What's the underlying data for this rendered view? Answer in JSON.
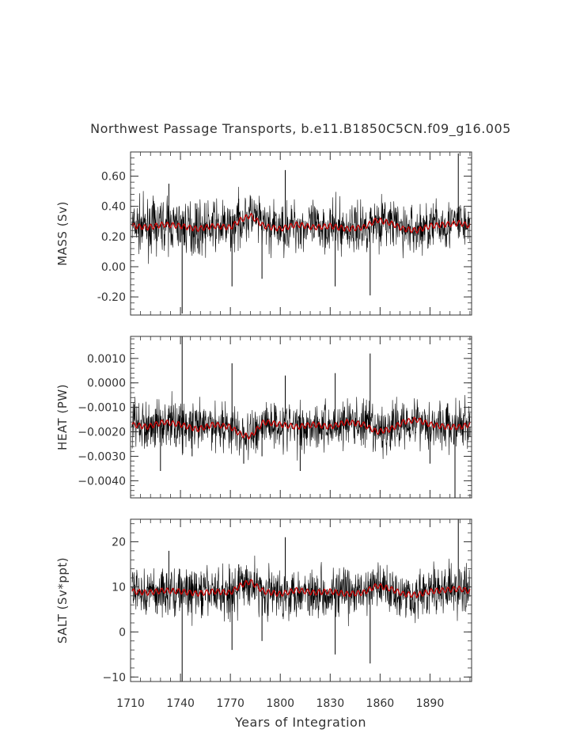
{
  "title": "Northwest Passage Transports, b.e11.B1850C5CN.f09_g16.005",
  "xlabel": "Years of Integration",
  "x_ticks": [
    1710,
    1740,
    1770,
    1800,
    1830,
    1860,
    1890
  ],
  "xlim": [
    1710,
    1915
  ],
  "colors": {
    "raw": "#000000",
    "smoothed": "#cc0000",
    "axis": "#333333"
  },
  "chart_data": [
    {
      "type": "line",
      "panel": "mass",
      "ylabel": "MASS (Sv)",
      "ylim": [
        -0.32,
        0.76
      ],
      "y_ticks": [
        -0.2,
        0.0,
        0.2,
        0.4,
        0.6
      ],
      "y_tick_labels": [
        "-0.20",
        "0.00",
        "0.20",
        "0.40",
        "0.60"
      ],
      "baseline": 0.27,
      "series": [
        {
          "style": "raw",
          "x": [
            1711,
            1720,
            1726,
            1733,
            1741,
            1749,
            1755,
            1766,
            1771,
            1775,
            1789,
            1797,
            1803,
            1812,
            1821,
            1833,
            1848,
            1854,
            1866,
            1878,
            1890,
            1902,
            1907,
            1914
          ],
          "y": [
            0.3,
            0.24,
            0.17,
            0.55,
            -0.31,
            0.42,
            0.21,
            0.28,
            -0.13,
            0.45,
            -0.08,
            0.3,
            0.64,
            0.15,
            0.33,
            -0.13,
            0.26,
            -0.19,
            0.38,
            0.16,
            0.35,
            0.22,
            0.75,
            0.27
          ]
        },
        {
          "style": "smoothed",
          "x": [
            1711,
            1720,
            1730,
            1740,
            1750,
            1760,
            1770,
            1776,
            1782,
            1790,
            1800,
            1810,
            1820,
            1830,
            1840,
            1850,
            1858,
            1866,
            1874,
            1882,
            1890,
            1900,
            1908,
            1914
          ],
          "y": [
            0.27,
            0.26,
            0.28,
            0.27,
            0.25,
            0.27,
            0.26,
            0.31,
            0.34,
            0.27,
            0.25,
            0.28,
            0.26,
            0.27,
            0.25,
            0.26,
            0.31,
            0.29,
            0.25,
            0.24,
            0.27,
            0.28,
            0.29,
            0.27
          ]
        }
      ]
    },
    {
      "type": "line",
      "panel": "heat",
      "ylabel": "HEAT (PW)",
      "ylim": [
        -0.0047,
        0.0019
      ],
      "y_ticks": [
        -0.004,
        -0.003,
        -0.002,
        -0.001,
        0.0,
        0.001
      ],
      "y_tick_labels": [
        "−0.0040",
        "−0.0030",
        "−0.0020",
        "−0.0010",
        "0.0000",
        "0.0010"
      ],
      "baseline": -0.0018,
      "series": [
        {
          "style": "raw",
          "x": [
            1711,
            1720,
            1728,
            1735,
            1741,
            1747,
            1755,
            1766,
            1771,
            1778,
            1789,
            1797,
            1803,
            1812,
            1825,
            1833,
            1845,
            1854,
            1866,
            1878,
            1890,
            1900,
            1905,
            1914
          ],
          "y": [
            -0.0017,
            -0.0026,
            -0.0036,
            -0.0012,
            0.0019,
            -0.003,
            -0.0019,
            -0.0014,
            0.0008,
            -0.0033,
            -0.003,
            -0.0012,
            0.0003,
            -0.0036,
            -0.0023,
            0.0004,
            -0.0012,
            0.0012,
            -0.0026,
            -0.0019,
            -0.0033,
            -0.001,
            -0.0047,
            -0.0022
          ]
        },
        {
          "style": "smoothed",
          "x": [
            1711,
            1720,
            1730,
            1740,
            1750,
            1760,
            1770,
            1776,
            1782,
            1790,
            1800,
            1810,
            1820,
            1830,
            1840,
            1850,
            1858,
            1866,
            1874,
            1882,
            1890,
            1900,
            1908,
            1914
          ],
          "y": [
            -0.0017,
            -0.0018,
            -0.0016,
            -0.0017,
            -0.0019,
            -0.0017,
            -0.0018,
            -0.0021,
            -0.0022,
            -0.0016,
            -0.0017,
            -0.0018,
            -0.0017,
            -0.0018,
            -0.0016,
            -0.0017,
            -0.002,
            -0.0019,
            -0.0016,
            -0.0015,
            -0.0017,
            -0.0018,
            -0.0018,
            -0.0017
          ]
        }
      ]
    },
    {
      "type": "line",
      "panel": "salt",
      "ylabel": "SALT (Sv*ppt)",
      "ylim": [
        -11,
        25
      ],
      "y_ticks": [
        -10,
        0,
        10,
        20
      ],
      "y_tick_labels": [
        "−10",
        "0",
        "10",
        "20"
      ],
      "baseline": 9,
      "series": [
        {
          "style": "raw",
          "x": [
            1711,
            1720,
            1726,
            1733,
            1741,
            1749,
            1755,
            1766,
            1771,
            1775,
            1789,
            1797,
            1803,
            1812,
            1821,
            1833,
            1848,
            1854,
            1866,
            1878,
            1890,
            1902,
            1907,
            1914
          ],
          "y": [
            10,
            7,
            4,
            18,
            -11,
            13,
            7,
            9,
            -4,
            15,
            -2,
            10,
            21,
            5,
            11,
            -5,
            9,
            -7,
            13,
            5,
            12,
            7,
            25,
            9
          ]
        },
        {
          "style": "smoothed",
          "x": [
            1711,
            1720,
            1730,
            1740,
            1750,
            1760,
            1770,
            1776,
            1782,
            1790,
            1800,
            1810,
            1820,
            1830,
            1840,
            1850,
            1858,
            1866,
            1874,
            1882,
            1890,
            1900,
            1908,
            1914
          ],
          "y": [
            9,
            8.7,
            9.2,
            9,
            8.5,
            9,
            8.7,
            10.3,
            11.2,
            9,
            8.4,
            9.3,
            8.7,
            9,
            8.4,
            8.7,
            10.3,
            9.6,
            8.4,
            8.2,
            9,
            9.3,
            9.6,
            9
          ]
        }
      ]
    }
  ]
}
